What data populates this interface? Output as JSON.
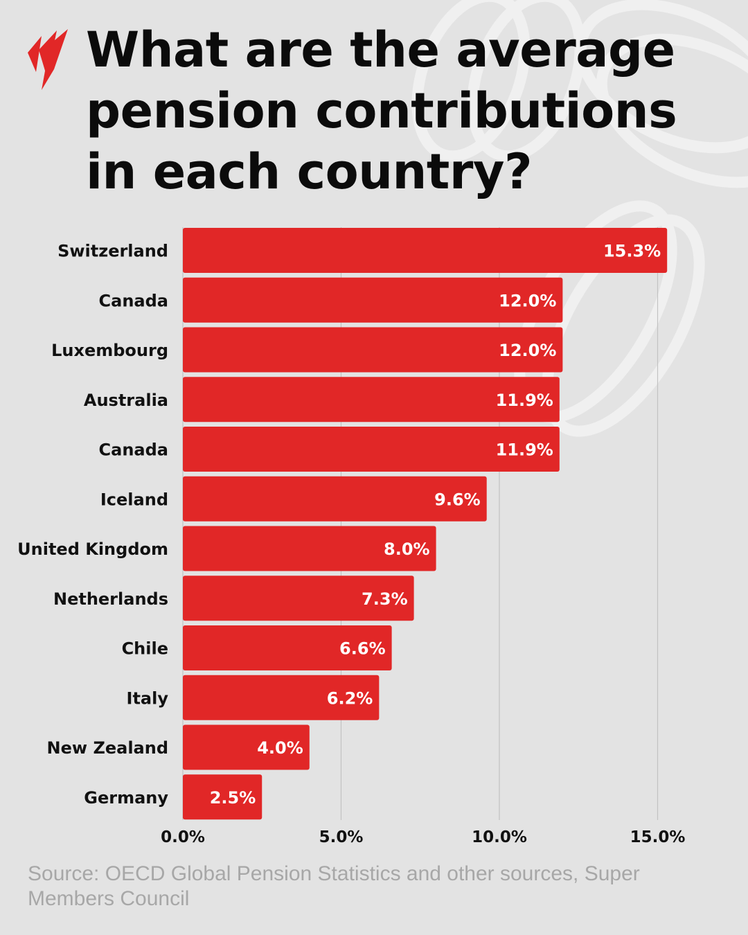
{
  "header": {
    "title": "What are the average pension contributions in each country?",
    "logo_icon": "broadcaster-logo-icon"
  },
  "colors": {
    "background": "#e3e3e3",
    "bar": "#e12727",
    "title": "#0b0b0b",
    "label": "#111111",
    "source": "#a7a7a7",
    "grid": "#c2c2c2"
  },
  "chart_data": {
    "type": "bar",
    "orientation": "horizontal",
    "categories": [
      "Switzerland",
      "Canada",
      "Luxembourg",
      "Australia",
      "Canada",
      "Iceland",
      "United Kingdom",
      "Netherlands",
      "Chile",
      "Italy",
      "New Zealand",
      "Germany"
    ],
    "values": [
      15.3,
      12.0,
      12.0,
      11.9,
      11.9,
      9.6,
      8.0,
      7.3,
      6.6,
      6.2,
      4.0,
      2.5
    ],
    "value_labels": [
      "15.3%",
      "12.0%",
      "12.0%",
      "11.9%",
      "11.9%",
      "9.6%",
      "8.0%",
      "7.3%",
      "6.6%",
      "6.2%",
      "4.0%",
      "2.5%"
    ],
    "xlim": [
      0,
      15
    ],
    "xticks": [
      0,
      5,
      10,
      15
    ],
    "xtick_labels": [
      "0.0%",
      "5.0%",
      "10.0%",
      "15.0%"
    ],
    "grid": true
  },
  "footer": {
    "source": "Source: OECD Global Pension Statistics and other sources, Super Members Council"
  }
}
